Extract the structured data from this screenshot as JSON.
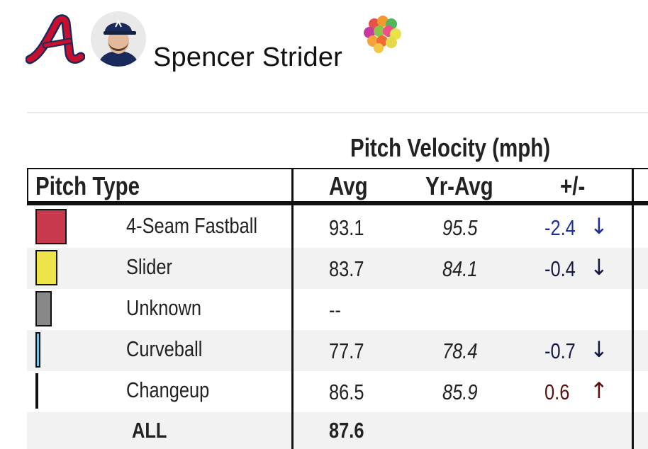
{
  "player": {
    "name": "Spencer Strider",
    "team_logo_icon": "braves-a-logo",
    "avatar_icon": "player-headshot",
    "badge_icon": "color-dot-cluster"
  },
  "table": {
    "group_title": "Pitch Velocity (mph)",
    "columns": {
      "pitch_type": "Pitch Type",
      "avg": "Avg",
      "yr_avg": "Yr-Avg",
      "diff": "+/-"
    },
    "rows": [
      {
        "pitch": "4-Seam Fastball",
        "color": "#c9394d",
        "avg": "93.1",
        "yr_avg": "95.5",
        "diff": "-2.4",
        "arrow": "↓",
        "diff_color": "#1d2f9c",
        "usage": 0.3
      },
      {
        "pitch": "Slider",
        "color": "#ece44a",
        "avg": "83.7",
        "yr_avg": "84.1",
        "diff": "-0.4",
        "arrow": "↓",
        "diff_color": "#151a44",
        "usage": 0.21
      },
      {
        "pitch": "Unknown",
        "color": "#888888",
        "avg": "--",
        "yr_avg": "",
        "diff": "",
        "arrow": "",
        "diff_color": "#111111",
        "usage": 0.16
      },
      {
        "pitch": "Curveball",
        "color": "#7cc0e4",
        "avg": "77.7",
        "yr_avg": "78.4",
        "diff": "-0.7",
        "arrow": "↓",
        "diff_color": "#151a44",
        "usage": 0.05
      },
      {
        "pitch": "Changeup",
        "color": "#111111",
        "avg": "86.5",
        "yr_avg": "85.9",
        "diff": "0.6",
        "arrow": "↑",
        "diff_color": "#5a1010",
        "usage": 0.01
      }
    ],
    "total": {
      "label": "ALL",
      "avg": "87.6"
    }
  }
}
